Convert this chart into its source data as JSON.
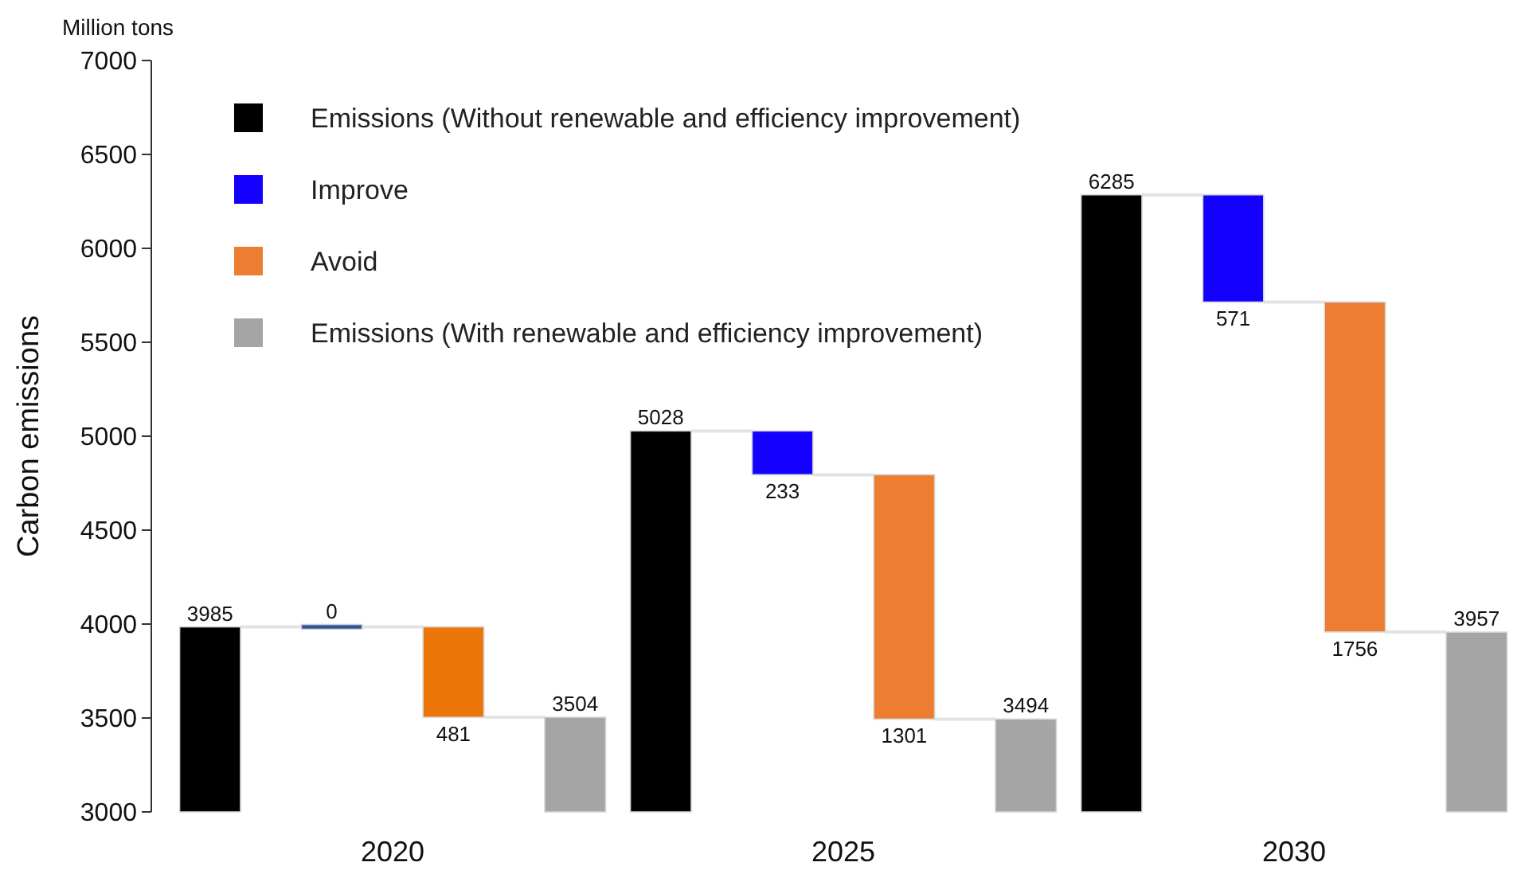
{
  "chart_data": {
    "type": "bar",
    "ylabel": "Carbon emissions",
    "annotations": [
      "Million tons"
    ],
    "categories": [
      "2020",
      "2025",
      "2030"
    ],
    "series": [
      {
        "name": "Emissions (Without renewable and efficiency improvement)",
        "color": "#000000",
        "values": [
          3985,
          5028,
          6285
        ]
      },
      {
        "name": "Improve",
        "color": "#1400ff",
        "colors": [
          "#2f5597",
          "#1400ff",
          "#1400ff"
        ],
        "values": [
          0,
          233,
          571
        ],
        "base": [
          3985,
          4795,
          5714
        ]
      },
      {
        "name": "Avoid",
        "color": "#ed7d31",
        "colors": [
          "#ed7609",
          "#ed7d31",
          "#ed7d31"
        ],
        "values": [
          481,
          1301,
          1756
        ],
        "base": [
          3504,
          3494,
          3958
        ]
      },
      {
        "name": "Emissions (With renewable and efficiency improvement)",
        "color": "#a5a5a5",
        "values": [
          3504,
          3494,
          3957
        ]
      }
    ],
    "ylim": [
      3000,
      7000
    ],
    "yticks": [
      3000,
      3500,
      4000,
      4500,
      5000,
      5500,
      6000,
      6500,
      7000
    ],
    "data_labels": true,
    "legend": "top left"
  }
}
